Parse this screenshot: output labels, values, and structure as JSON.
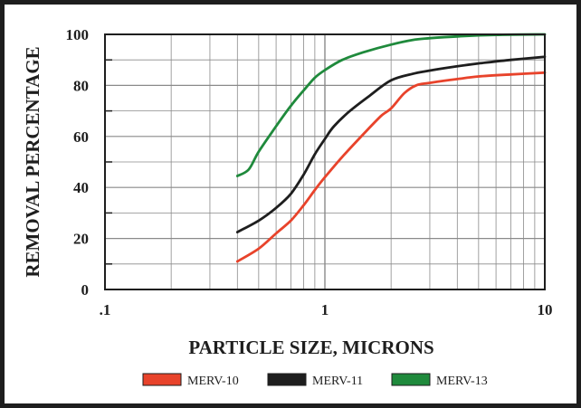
{
  "chart_data": {
    "type": "line",
    "title": "",
    "xlabel": "PARTICLE SIZE, MICRONS",
    "ylabel": "REMOVAL PERCENTAGE",
    "xscale": "log",
    "xlim": [
      0.1,
      10
    ],
    "ylim": [
      0,
      100
    ],
    "x_tick_labels": [
      ".1",
      "1",
      "10"
    ],
    "x_tick_values": [
      0.1,
      1,
      10
    ],
    "y_tick_labels": [
      "0",
      "20",
      "40",
      "60",
      "80",
      "100"
    ],
    "y_tick_values": [
      0,
      20,
      40,
      60,
      80,
      100
    ],
    "grid": true,
    "legend_position": "bottom",
    "series": [
      {
        "name": "MERV-10",
        "color": "#e8432b",
        "x": [
          0.4,
          0.5,
          0.6,
          0.7,
          0.8,
          0.9,
          1.0,
          1.2,
          1.5,
          1.8,
          2.0,
          2.3,
          2.6,
          3.0,
          4.0,
          5.0,
          7.0,
          10.0
        ],
        "values": [
          11,
          16,
          22,
          27,
          33,
          39,
          44,
          52,
          61,
          68,
          71,
          77,
          80,
          81,
          82.5,
          83.5,
          84.3,
          85
        ]
      },
      {
        "name": "MERV-11",
        "color": "#1e1e1e",
        "x": [
          0.4,
          0.5,
          0.6,
          0.7,
          0.8,
          0.9,
          1.0,
          1.1,
          1.3,
          1.6,
          2.0,
          2.5,
          3.0,
          4.0,
          5.0,
          7.0,
          10.0
        ],
        "values": [
          22.5,
          27,
          32,
          37.5,
          45,
          53,
          59,
          64,
          70,
          76,
          82,
          84.5,
          85.8,
          87.5,
          88.6,
          90,
          91.2
        ]
      },
      {
        "name": "MERV-13",
        "color": "#1f8a3c",
        "x": [
          0.4,
          0.45,
          0.5,
          0.6,
          0.7,
          0.8,
          0.9,
          1.0,
          1.2,
          1.5,
          2.0,
          2.5,
          3.0,
          4.0,
          6.0,
          10.0
        ],
        "values": [
          44.5,
          47,
          54,
          64,
          72,
          78,
          83,
          86,
          90,
          93,
          96,
          97.8,
          98.5,
          99.2,
          99.8,
          100
        ]
      }
    ]
  }
}
